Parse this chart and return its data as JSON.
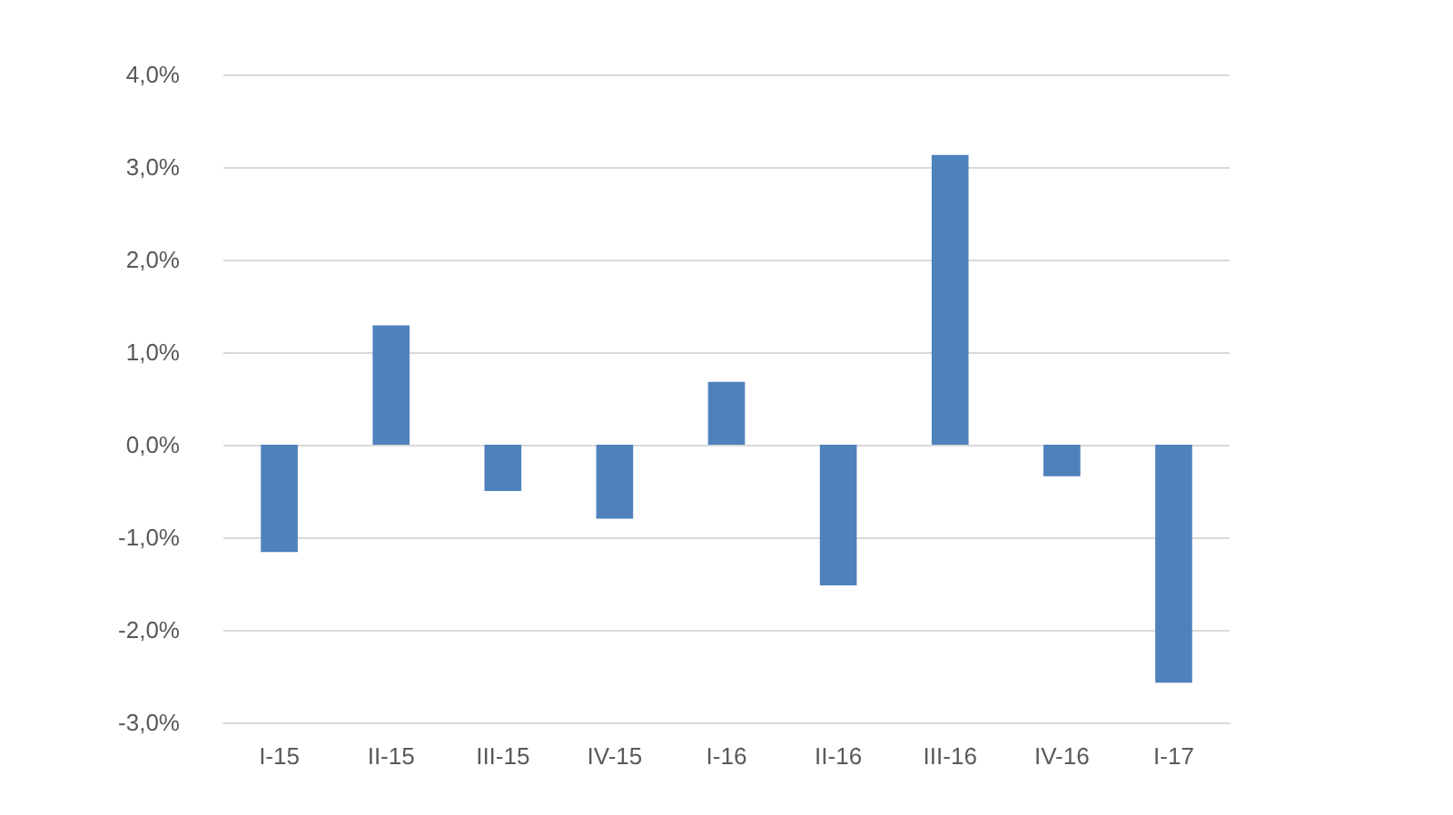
{
  "chart_data": {
    "type": "bar",
    "categories": [
      "I-15",
      "II-15",
      "III-15",
      "IV-15",
      "I-16",
      "II-16",
      "III-16",
      "IV-16",
      "I-17"
    ],
    "values": [
      -1.16,
      1.29,
      -0.5,
      -0.8,
      0.68,
      -1.52,
      3.13,
      -0.34,
      -2.57
    ],
    "color": "#4f81bd",
    "ylim": [
      -3,
      4
    ],
    "yticks": [
      {
        "value": -3,
        "label": "-3,0%"
      },
      {
        "value": -2,
        "label": "-2,0%"
      },
      {
        "value": -1,
        "label": "-1,0%"
      },
      {
        "value": 0,
        "label": "0,0%"
      },
      {
        "value": 1,
        "label": "1,0%"
      },
      {
        "value": 2,
        "label": "2,0%"
      },
      {
        "value": 3,
        "label": "3,0%"
      },
      {
        "value": 4,
        "label": "4,0%"
      }
    ],
    "grid": "y"
  }
}
